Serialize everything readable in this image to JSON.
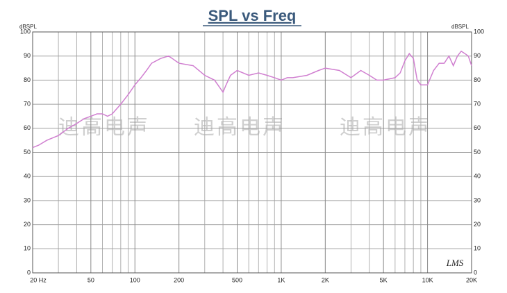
{
  "chart_data": {
    "type": "line",
    "title": "SPL vs Freq",
    "y_axis_label": "dBSPL",
    "y2_axis_label": "dBSPL",
    "watermarks": [
      "迪高电声",
      "迪高电声",
      "迪高电声"
    ],
    "logo": "LMS",
    "log_x": true,
    "grid": true,
    "xlim": [
      20,
      20000
    ],
    "ylim": [
      0,
      100
    ],
    "xticks": [
      {
        "value": 20,
        "label": "20  Hz"
      },
      50,
      100,
      200,
      500,
      {
        "value": 1000,
        "label": "1K"
      },
      {
        "value": 2000,
        "label": "2K"
      },
      {
        "value": 5000,
        "label": "5K"
      },
      {
        "value": 10000,
        "label": "10K"
      },
      {
        "value": 20000,
        "label": "20K"
      }
    ],
    "xminor": [
      30,
      40,
      60,
      70,
      80,
      90,
      300,
      400,
      600,
      700,
      800,
      900,
      3000,
      4000,
      6000,
      7000,
      8000,
      9000
    ],
    "yticks": [
      0,
      10,
      20,
      30,
      40,
      50,
      60,
      70,
      80,
      90,
      100
    ],
    "series": [
      {
        "color": "#d07fd0",
        "x": [
          20,
          22,
          25,
          30,
          35,
          40,
          45,
          50,
          55,
          60,
          65,
          70,
          80,
          90,
          100,
          110,
          120,
          130,
          150,
          170,
          180,
          200,
          250,
          300,
          350,
          400,
          420,
          450,
          500,
          600,
          700,
          800,
          900,
          1000,
          1100,
          1200,
          1500,
          1800,
          2000,
          2500,
          3000,
          3500,
          4000,
          4500,
          5000,
          6000,
          6500,
          7000,
          7500,
          8000,
          8500,
          9000,
          10000,
          11000,
          12000,
          13000,
          14000,
          15000,
          16000,
          17000,
          18000,
          19000,
          20000
        ],
        "values": [
          52,
          53,
          55,
          57,
          60,
          62,
          64,
          65,
          66,
          66,
          65,
          66,
          70,
          74,
          78,
          81,
          84,
          87,
          89,
          90,
          89,
          87,
          86,
          82,
          80,
          75,
          78,
          82,
          84,
          82,
          83,
          82,
          81,
          80,
          81,
          81,
          82,
          84,
          85,
          84,
          81,
          84,
          82,
          80,
          80,
          81,
          83,
          88,
          91,
          89,
          80,
          78,
          78,
          84,
          87,
          87,
          90,
          86,
          90,
          92,
          91,
          90,
          86
        ]
      }
    ]
  }
}
